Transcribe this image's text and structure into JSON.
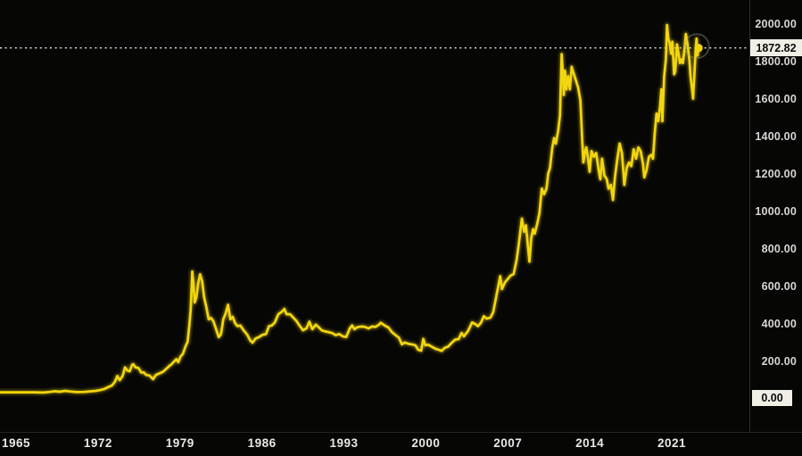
{
  "chart_data": {
    "type": "line",
    "grid": "off",
    "legend": "none",
    "line_color": "#f2d60e",
    "background_color": "#060605",
    "axis_text_color": "#d9d6cf",
    "label_box_color": "#f1eee6",
    "xlim": [
      1963.6,
      2027.6
    ],
    "ylim": [
      0,
      2128
    ],
    "last_price": 1872.82,
    "last_price_label": "1872.82",
    "baseline_label": "0.00",
    "last_point_year": 2023.3,
    "series": [
      {
        "name": "price",
        "points": [
          [
            1963.6,
            35
          ],
          [
            1964.5,
            35
          ],
          [
            1965.5,
            35
          ],
          [
            1966.5,
            35
          ],
          [
            1967.3,
            34
          ],
          [
            1967.9,
            37
          ],
          [
            1968.3,
            41
          ],
          [
            1968.7,
            38
          ],
          [
            1969.2,
            43
          ],
          [
            1969.7,
            39
          ],
          [
            1970.2,
            36
          ],
          [
            1970.8,
            37
          ],
          [
            1971.3,
            40
          ],
          [
            1971.8,
            43
          ],
          [
            1972.1,
            46
          ],
          [
            1972.5,
            52
          ],
          [
            1972.9,
            64
          ],
          [
            1973.2,
            72
          ],
          [
            1973.45,
            92
          ],
          [
            1973.65,
            122
          ],
          [
            1973.85,
            100
          ],
          [
            1974.1,
            122
          ],
          [
            1974.3,
            168
          ],
          [
            1974.5,
            152
          ],
          [
            1974.7,
            147
          ],
          [
            1974.9,
            180
          ],
          [
            1975.0,
            185
          ],
          [
            1975.2,
            168
          ],
          [
            1975.45,
            165
          ],
          [
            1975.7,
            140
          ],
          [
            1975.9,
            142
          ],
          [
            1976.1,
            128
          ],
          [
            1976.4,
            125
          ],
          [
            1976.7,
            105
          ],
          [
            1976.95,
            128
          ],
          [
            1977.25,
            136
          ],
          [
            1977.55,
            145
          ],
          [
            1977.85,
            162
          ],
          [
            1978.1,
            176
          ],
          [
            1978.3,
            186
          ],
          [
            1978.5,
            200
          ],
          [
            1978.7,
            212
          ],
          [
            1978.85,
            196
          ],
          [
            1979.05,
            226
          ],
          [
            1979.25,
            240
          ],
          [
            1979.45,
            277
          ],
          [
            1979.65,
            305
          ],
          [
            1979.8,
            390
          ],
          [
            1979.92,
            480
          ],
          [
            1980.05,
            680
          ],
          [
            1980.13,
            630
          ],
          [
            1980.25,
            515
          ],
          [
            1980.4,
            540
          ],
          [
            1980.55,
            615
          ],
          [
            1980.72,
            665
          ],
          [
            1980.9,
            625
          ],
          [
            1981.05,
            545
          ],
          [
            1981.25,
            490
          ],
          [
            1981.45,
            425
          ],
          [
            1981.65,
            432
          ],
          [
            1981.85,
            415
          ],
          [
            1982.05,
            378
          ],
          [
            1982.3,
            330
          ],
          [
            1982.5,
            345
          ],
          [
            1982.7,
            425
          ],
          [
            1982.9,
            455
          ],
          [
            1983.1,
            502
          ],
          [
            1983.3,
            425
          ],
          [
            1983.5,
            438
          ],
          [
            1983.7,
            405
          ],
          [
            1983.9,
            388
          ],
          [
            1984.15,
            392
          ],
          [
            1984.45,
            365
          ],
          [
            1984.75,
            342
          ],
          [
            1985.0,
            312
          ],
          [
            1985.2,
            300
          ],
          [
            1985.45,
            322
          ],
          [
            1985.75,
            330
          ],
          [
            1986.05,
            342
          ],
          [
            1986.35,
            346
          ],
          [
            1986.6,
            388
          ],
          [
            1986.85,
            392
          ],
          [
            1987.1,
            408
          ],
          [
            1987.4,
            452
          ],
          [
            1987.7,
            465
          ],
          [
            1987.92,
            480
          ],
          [
            1988.1,
            452
          ],
          [
            1988.4,
            452
          ],
          [
            1988.7,
            432
          ],
          [
            1988.95,
            416
          ],
          [
            1989.2,
            392
          ],
          [
            1989.5,
            366
          ],
          [
            1989.8,
            376
          ],
          [
            1990.05,
            412
          ],
          [
            1990.3,
            372
          ],
          [
            1990.6,
            396
          ],
          [
            1990.85,
            382
          ],
          [
            1991.1,
            366
          ],
          [
            1991.4,
            360
          ],
          [
            1991.7,
            356
          ],
          [
            1992.0,
            351
          ],
          [
            1992.3,
            340
          ],
          [
            1992.6,
            346
          ],
          [
            1992.9,
            334
          ],
          [
            1993.2,
            330
          ],
          [
            1993.5,
            376
          ],
          [
            1993.7,
            392
          ],
          [
            1993.9,
            372
          ],
          [
            1994.15,
            383
          ],
          [
            1994.5,
            386
          ],
          [
            1994.8,
            384
          ],
          [
            1995.1,
            376
          ],
          [
            1995.4,
            386
          ],
          [
            1995.7,
            384
          ],
          [
            1996.0,
            396
          ],
          [
            1996.15,
            406
          ],
          [
            1996.5,
            391
          ],
          [
            1996.8,
            381
          ],
          [
            1997.1,
            356
          ],
          [
            1997.4,
            341
          ],
          [
            1997.7,
            326
          ],
          [
            1997.95,
            291
          ],
          [
            1998.2,
            301
          ],
          [
            1998.5,
            294
          ],
          [
            1998.8,
            291
          ],
          [
            1999.1,
            286
          ],
          [
            1999.35,
            262
          ],
          [
            1999.6,
            257
          ],
          [
            1999.78,
            320
          ],
          [
            1999.95,
            286
          ],
          [
            2000.2,
            289
          ],
          [
            2000.5,
            279
          ],
          [
            2000.8,
            268
          ],
          [
            2001.1,
            262
          ],
          [
            2001.35,
            256
          ],
          [
            2001.6,
            272
          ],
          [
            2001.9,
            279
          ],
          [
            2002.2,
            299
          ],
          [
            2002.5,
            316
          ],
          [
            2002.8,
            319
          ],
          [
            2003.05,
            352
          ],
          [
            2003.25,
            334
          ],
          [
            2003.6,
            362
          ],
          [
            2003.95,
            408
          ],
          [
            2004.2,
            400
          ],
          [
            2004.45,
            388
          ],
          [
            2004.7,
            406
          ],
          [
            2004.95,
            441
          ],
          [
            2005.2,
            428
          ],
          [
            2005.5,
            433
          ],
          [
            2005.75,
            462
          ],
          [
            2006.0,
            542
          ],
          [
            2006.35,
            655
          ],
          [
            2006.5,
            586
          ],
          [
            2006.75,
            622
          ],
          [
            2006.95,
            636
          ],
          [
            2007.2,
            656
          ],
          [
            2007.5,
            666
          ],
          [
            2007.75,
            742
          ],
          [
            2007.95,
            832
          ],
          [
            2008.2,
            962
          ],
          [
            2008.4,
            892
          ],
          [
            2008.55,
            926
          ],
          [
            2008.7,
            822
          ],
          [
            2008.85,
            732
          ],
          [
            2009.0,
            856
          ],
          [
            2009.15,
            906
          ],
          [
            2009.3,
            882
          ],
          [
            2009.5,
            932
          ],
          [
            2009.7,
            992
          ],
          [
            2009.9,
            1122
          ],
          [
            2010.1,
            1092
          ],
          [
            2010.3,
            1122
          ],
          [
            2010.45,
            1202
          ],
          [
            2010.6,
            1232
          ],
          [
            2010.8,
            1342
          ],
          [
            2010.95,
            1392
          ],
          [
            2011.1,
            1362
          ],
          [
            2011.3,
            1432
          ],
          [
            2011.45,
            1512
          ],
          [
            2011.6,
            1840
          ],
          [
            2011.7,
            1742
          ],
          [
            2011.78,
            1622
          ],
          [
            2011.88,
            1752
          ],
          [
            2012.0,
            1652
          ],
          [
            2012.15,
            1722
          ],
          [
            2012.3,
            1652
          ],
          [
            2012.45,
            1772
          ],
          [
            2012.6,
            1742
          ],
          [
            2012.8,
            1702
          ],
          [
            2013.0,
            1662
          ],
          [
            2013.2,
            1592
          ],
          [
            2013.35,
            1382
          ],
          [
            2013.45,
            1262
          ],
          [
            2013.6,
            1322
          ],
          [
            2013.7,
            1342
          ],
          [
            2013.85,
            1282
          ],
          [
            2013.98,
            1212
          ],
          [
            2014.15,
            1322
          ],
          [
            2014.35,
            1292
          ],
          [
            2014.55,
            1312
          ],
          [
            2014.75,
            1222
          ],
          [
            2014.9,
            1172
          ],
          [
            2015.05,
            1282
          ],
          [
            2015.25,
            1192
          ],
          [
            2015.45,
            1172
          ],
          [
            2015.6,
            1122
          ],
          [
            2015.8,
            1142
          ],
          [
            2015.98,
            1062
          ],
          [
            2016.15,
            1182
          ],
          [
            2016.35,
            1282
          ],
          [
            2016.55,
            1362
          ],
          [
            2016.75,
            1312
          ],
          [
            2016.95,
            1142
          ],
          [
            2017.15,
            1232
          ],
          [
            2017.35,
            1262
          ],
          [
            2017.55,
            1242
          ],
          [
            2017.75,
            1332
          ],
          [
            2017.95,
            1282
          ],
          [
            2018.15,
            1342
          ],
          [
            2018.35,
            1322
          ],
          [
            2018.55,
            1252
          ],
          [
            2018.65,
            1182
          ],
          [
            2018.85,
            1222
          ],
          [
            2019.05,
            1292
          ],
          [
            2019.25,
            1302
          ],
          [
            2019.4,
            1282
          ],
          [
            2019.55,
            1422
          ],
          [
            2019.7,
            1522
          ],
          [
            2019.85,
            1482
          ],
          [
            2020.0,
            1562
          ],
          [
            2020.12,
            1652
          ],
          [
            2020.2,
            1482
          ],
          [
            2020.35,
            1722
          ],
          [
            2020.5,
            1812
          ],
          [
            2020.6,
            1995
          ],
          [
            2020.7,
            1922
          ],
          [
            2020.82,
            1902
          ],
          [
            2020.95,
            1842
          ],
          [
            2021.05,
            1906
          ],
          [
            2021.2,
            1732
          ],
          [
            2021.3,
            1746
          ],
          [
            2021.45,
            1892
          ],
          [
            2021.55,
            1856
          ],
          [
            2021.7,
            1792
          ],
          [
            2021.85,
            1812
          ],
          [
            2021.95,
            1792
          ],
          [
            2022.1,
            1872
          ],
          [
            2022.2,
            1947
          ],
          [
            2022.35,
            1892
          ],
          [
            2022.5,
            1812
          ],
          [
            2022.6,
            1722
          ],
          [
            2022.75,
            1642
          ],
          [
            2022.82,
            1602
          ],
          [
            2022.95,
            1752
          ],
          [
            2023.05,
            1872
          ],
          [
            2023.12,
            1922
          ],
          [
            2023.2,
            1832
          ],
          [
            2023.3,
            1872.82
          ]
        ]
      }
    ]
  },
  "price_axis": {
    "ticks": [
      "2000.00",
      "1800.00",
      "1600.00",
      "1400.00",
      "1200.00",
      "1000.00",
      "800.00",
      "600.00",
      "400.00",
      "200.00"
    ]
  },
  "time_axis": {
    "ticks": [
      "1965",
      "1972",
      "1979",
      "1986",
      "1993",
      "2000",
      "2007",
      "2014",
      "2021"
    ]
  }
}
